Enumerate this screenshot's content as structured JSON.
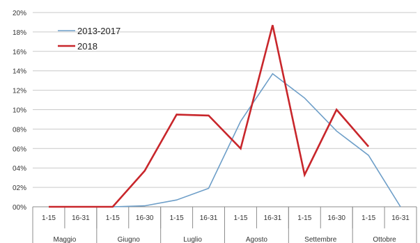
{
  "chart_data": {
    "type": "line",
    "y_axis": {
      "min": 0,
      "max": 20,
      "step": 2,
      "tick_labels": [
        "00%",
        "02%",
        "04%",
        "06%",
        "08%",
        "10%",
        "12%",
        "14%",
        "16%",
        "18%",
        "20%"
      ]
    },
    "categories": [
      "1-15",
      "16-31",
      "1-15",
      "16-30",
      "1-15",
      "16-31",
      "1-15",
      "16-31",
      "1-15",
      "16-30",
      "1-15",
      "16-31"
    ],
    "category_groups": [
      {
        "label": "Maggio",
        "span": 2
      },
      {
        "label": "Giugno",
        "span": 2
      },
      {
        "label": "Luglio",
        "span": 2
      },
      {
        "label": "Agosto",
        "span": 2
      },
      {
        "label": "Settembre",
        "span": 2
      },
      {
        "label": "Ottobre",
        "span": 2
      }
    ],
    "series": [
      {
        "name": "2013-2017",
        "color": "#6d9ec8",
        "values": [
          0,
          0,
          0,
          0.1,
          0.7,
          1.9,
          8.8,
          13.7,
          11.2,
          7.8,
          5.3,
          0
        ]
      },
      {
        "name": "2018",
        "color": "#c8262b",
        "values": [
          0,
          0,
          0,
          3.7,
          9.5,
          9.4,
          6.0,
          18.7,
          3.3,
          10.0,
          6.2,
          null
        ]
      }
    ],
    "grid": "horizontal",
    "legend_position": "top-left"
  }
}
